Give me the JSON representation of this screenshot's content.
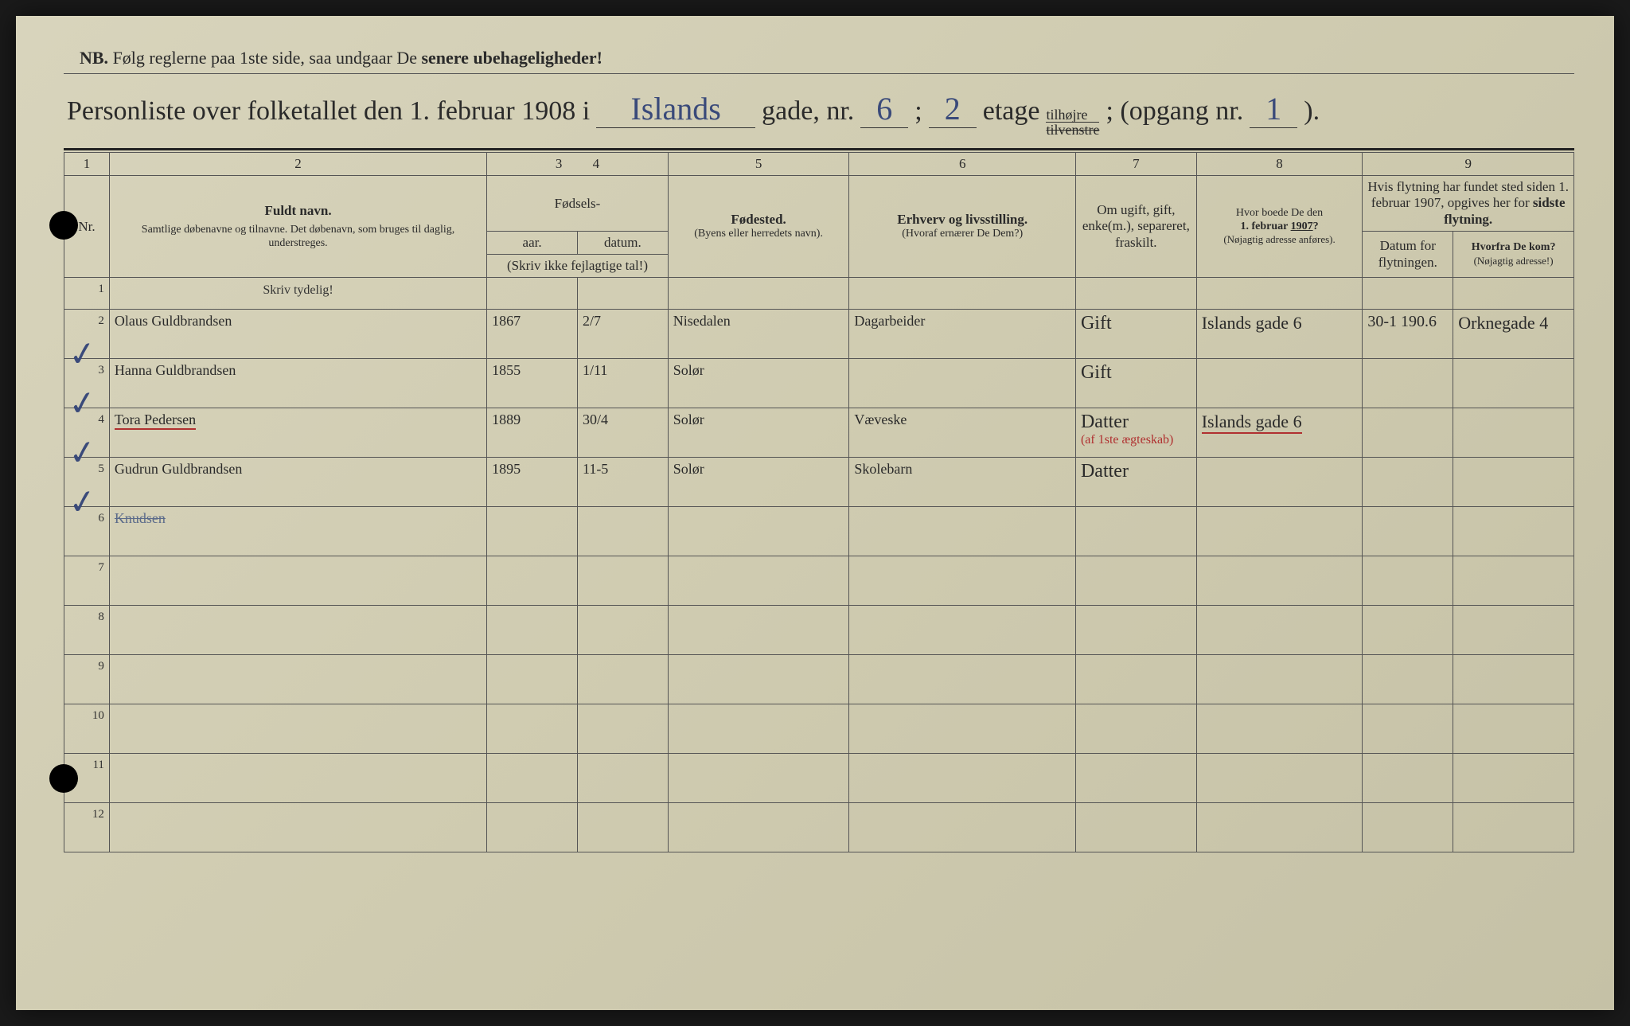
{
  "colors": {
    "paper_bg_start": "#d8d4bc",
    "paper_bg_end": "#c5c1a6",
    "print_ink": "#2a2a2a",
    "hand_ink": "#3a4a7a",
    "red_ink": "#b03030",
    "rule": "#555555"
  },
  "nb": {
    "label": "NB.",
    "text_part1": "Følg reglerne paa 1ste side, saa undgaar De ",
    "text_part2": "senere ubehageligheder!"
  },
  "title": {
    "t1": "Personliste over folketallet den 1. februar 1908 i",
    "street": "Islands",
    "t2": "gade, nr.",
    "house_nr": "6",
    "t3": ";",
    "floor_nr": "2",
    "t4": "etage",
    "side_top": "tilhøjre",
    "side_bottom": "tilvenstre",
    "t5": "; (opgang nr.",
    "entrance_nr": "1",
    "t6": ")."
  },
  "headers": {
    "colnums": [
      "1",
      "2",
      "3",
      "4",
      "5",
      "6",
      "7",
      "8",
      "9"
    ],
    "nr": "Nr.",
    "name_title": "Fuldt navn.",
    "name_sub": "Samtlige døbenavne og tilnavne. Det døbenavn, som bruges til daglig, understreges.",
    "birth_group": "Fødsels-",
    "year": "aar.",
    "date": "datum.",
    "birth_note": "(Skriv ikke fejlagtige tal!)",
    "birthplace": "Fødested.",
    "birthplace_sub": "(Byens eller herre­dets navn).",
    "occupation": "Erhverv og livsstilling.",
    "occupation_sub": "(Hvoraf ernærer De Dem?)",
    "marital": "Om ugift, gift, enke(m.), separeret, fraskilt.",
    "prev_addr": "Hvor boede De den 1. februar 1907?",
    "prev_addr_sub": "(Nøjagtig adresse anføres).",
    "move_group": "Hvis flytning har fundet sted siden 1. februar 1907, opgives her for sidste flytning.",
    "move_date": "Datum for flyt­ningen.",
    "move_from": "Hvorfra De kom?",
    "move_from_sub": "(Nøjagtig adresse!)",
    "skriv": "Skriv tydelig!"
  },
  "column_widths_pct": [
    3,
    25,
    6,
    6,
    12,
    15,
    8,
    11,
    6,
    8
  ],
  "rows": [
    {
      "nr": "1",
      "name": "",
      "year": "",
      "date": "",
      "birthplace": "",
      "occupation": "",
      "marital": "",
      "prev": "",
      "move_date": "",
      "from": ""
    },
    {
      "nr": "2",
      "name": "Olaus Guldbrandsen",
      "year": "1867",
      "date": "2/7",
      "birthplace": "Nisedalen",
      "occupation": "Dagarbeider",
      "marital": "Gift",
      "prev": "Islands gade 6",
      "move_date": "30-1 190.6",
      "from": "Orknegade 4",
      "check": true
    },
    {
      "nr": "3",
      "name": "Hanna Guldbrandsen",
      "year": "1855",
      "date": "1/11",
      "birthplace": "Solør",
      "occupation": "",
      "marital": "Gift",
      "prev": "",
      "move_date": "",
      "from": "",
      "check": true
    },
    {
      "nr": "4",
      "name": "Tora Pedersen",
      "year": "1889",
      "date": "30/4",
      "birthplace": "Solør",
      "occupation": "Væveske",
      "marital": "Datter",
      "prev": "Islands gade 6",
      "move_date": "",
      "from": "",
      "check": true,
      "red_underline_name": true,
      "red_note": "(af 1ste ægteskab)",
      "red_underline_prev": true
    },
    {
      "nr": "5",
      "name": "Gudrun Guldbrandsen",
      "year": "1895",
      "date": "11-5",
      "birthplace": "Solør",
      "occupation": "Skolebarn",
      "marital": "Datter",
      "prev": "",
      "move_date": "",
      "from": "",
      "check": true
    },
    {
      "nr": "6",
      "name": "Knudsen",
      "year": "",
      "date": "",
      "birthplace": "",
      "occupation": "",
      "marital": "",
      "prev": "",
      "move_date": "",
      "from": "",
      "strike": true
    },
    {
      "nr": "7",
      "name": "",
      "year": "",
      "date": "",
      "birthplace": "",
      "occupation": "",
      "marital": "",
      "prev": "",
      "move_date": "",
      "from": ""
    },
    {
      "nr": "8",
      "name": "",
      "year": "",
      "date": "",
      "birthplace": "",
      "occupation": "",
      "marital": "",
      "prev": "",
      "move_date": "",
      "from": ""
    },
    {
      "nr": "9",
      "name": "",
      "year": "",
      "date": "",
      "birthplace": "",
      "occupation": "",
      "marital": "",
      "prev": "",
      "move_date": "",
      "from": ""
    },
    {
      "nr": "10",
      "name": "",
      "year": "",
      "date": "",
      "birthplace": "",
      "occupation": "",
      "marital": "",
      "prev": "",
      "move_date": "",
      "from": ""
    },
    {
      "nr": "11",
      "name": "",
      "year": "",
      "date": "",
      "birthplace": "",
      "occupation": "",
      "marital": "",
      "prev": "",
      "move_date": "",
      "from": ""
    },
    {
      "nr": "12",
      "name": "",
      "year": "",
      "date": "",
      "birthplace": "",
      "occupation": "",
      "marital": "",
      "prev": "",
      "move_date": "",
      "from": ""
    }
  ]
}
